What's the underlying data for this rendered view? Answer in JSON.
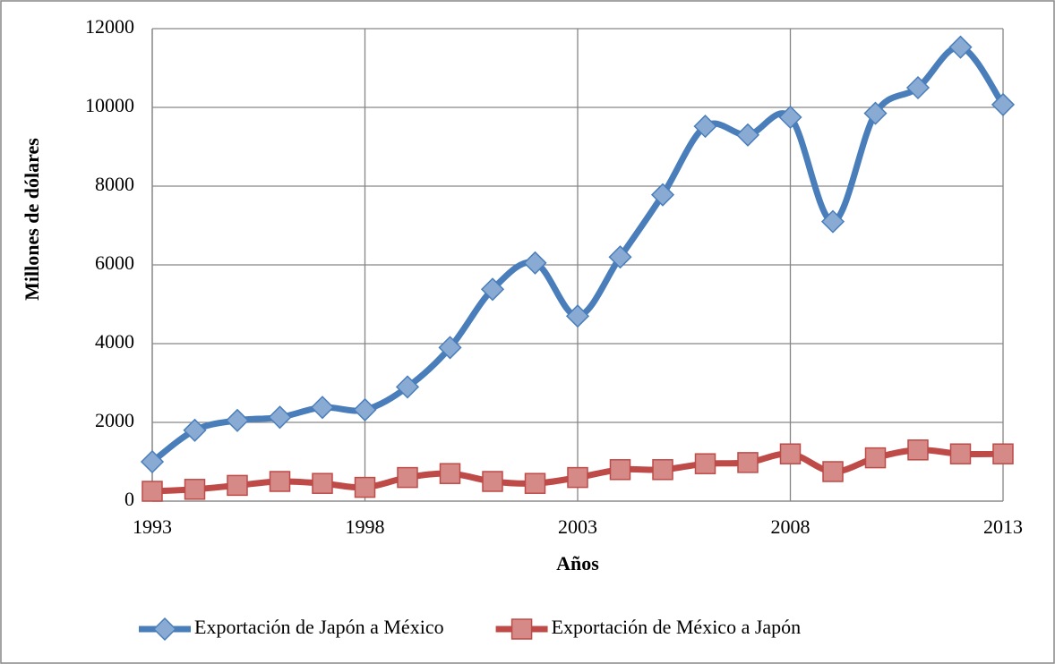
{
  "chart_data": {
    "type": "line",
    "x_label": "Años",
    "y_label": "Millones de dólares",
    "x": [
      1993,
      1994,
      1995,
      1996,
      1997,
      1998,
      1999,
      2000,
      2001,
      2002,
      2003,
      2004,
      2005,
      2006,
      2007,
      2008,
      2009,
      2010,
      2011,
      2012,
      2013
    ],
    "series": [
      {
        "name": "Exportación de Japón a México",
        "color": "#4a7ebb",
        "marker": "diamond",
        "values": [
          1000,
          1800,
          2050,
          2130,
          2380,
          2320,
          2900,
          3900,
          5380,
          6050,
          4700,
          6200,
          7780,
          9520,
          9300,
          9750,
          7100,
          9850,
          10500,
          11530,
          10070
        ]
      },
      {
        "name": "Exportación de México a Japón",
        "color": "#be4b48",
        "marker": "square",
        "values": [
          250,
          300,
          400,
          500,
          450,
          350,
          600,
          700,
          500,
          450,
          600,
          800,
          800,
          950,
          980,
          1200,
          750,
          1100,
          1300,
          1200,
          1200
        ]
      }
    ],
    "xlim": [
      1993,
      2013
    ],
    "xticks": [
      1993,
      1998,
      2003,
      2008,
      2013
    ],
    "ylim": [
      0,
      12000
    ],
    "yticks": [
      0,
      2000,
      4000,
      6000,
      8000,
      10000,
      12000
    ],
    "grid": true,
    "legend": "bottom",
    "smooth": true
  }
}
